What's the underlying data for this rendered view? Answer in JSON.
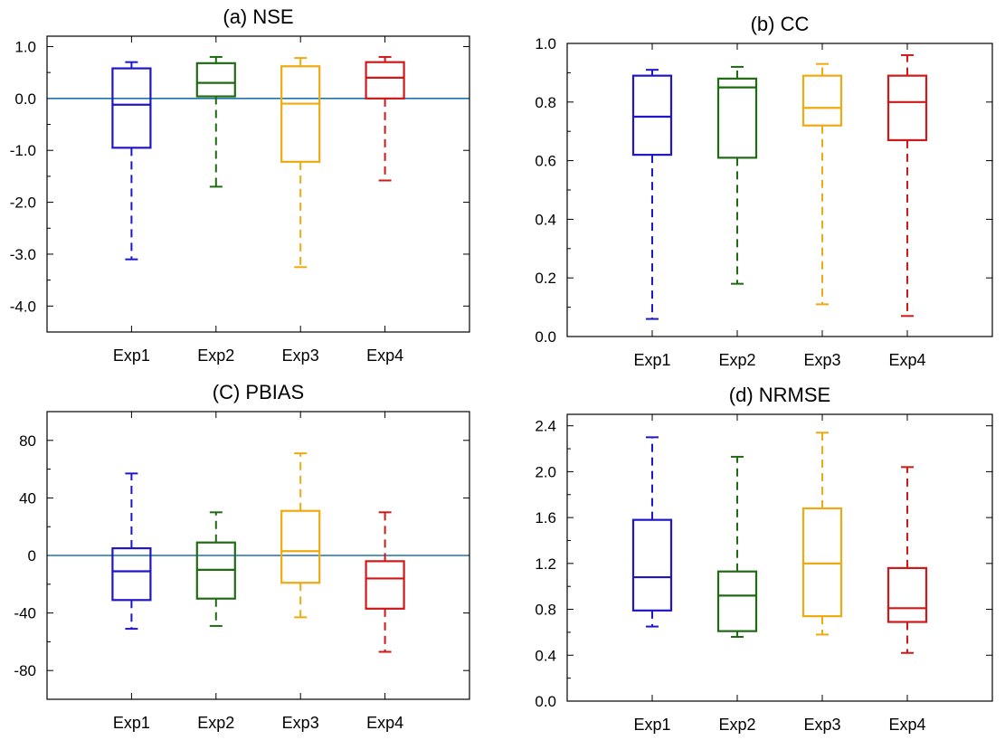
{
  "chart_data": [
    {
      "type": "box",
      "title": "(a) NSE",
      "categories": [
        "Exp1",
        "Exp2",
        "Exp3",
        "Exp4"
      ],
      "ylim": [
        -4.5,
        1.2
      ],
      "yticks": [
        -4.0,
        -3.0,
        -2.0,
        -1.0,
        0.0,
        1.0
      ],
      "ytick_labels": [
        "-4.0",
        "-3.0",
        "-2.0",
        "-1.0",
        "0.0",
        "1.0"
      ],
      "reference_line": 0,
      "boxes": [
        {
          "min": -3.1,
          "q1": -0.95,
          "median": -0.12,
          "q3": 0.58,
          "max": 0.7
        },
        {
          "min": -1.7,
          "q1": 0.04,
          "median": 0.3,
          "q3": 0.68,
          "max": 0.8
        },
        {
          "min": -3.25,
          "q1": -1.22,
          "median": -0.1,
          "q3": 0.62,
          "max": 0.78
        },
        {
          "min": -1.58,
          "q1": 0.0,
          "median": 0.4,
          "q3": 0.7,
          "max": 0.8
        }
      ]
    },
    {
      "type": "box",
      "title": "(b) CC",
      "categories": [
        "Exp1",
        "Exp2",
        "Exp3",
        "Exp4"
      ],
      "ylim": [
        0.0,
        1.0
      ],
      "yticks": [
        0.0,
        0.2,
        0.4,
        0.6,
        0.8,
        1.0
      ],
      "ytick_labels": [
        "0.0",
        "0.2",
        "0.4",
        "0.6",
        "0.8",
        "1.0"
      ],
      "reference_line": null,
      "boxes": [
        {
          "min": 0.06,
          "q1": 0.62,
          "median": 0.75,
          "q3": 0.89,
          "max": 0.91
        },
        {
          "min": 0.18,
          "q1": 0.61,
          "median": 0.85,
          "q3": 0.88,
          "max": 0.92
        },
        {
          "min": 0.11,
          "q1": 0.72,
          "median": 0.78,
          "q3": 0.89,
          "max": 0.93
        },
        {
          "min": 0.07,
          "q1": 0.67,
          "median": 0.8,
          "q3": 0.89,
          "max": 0.96
        }
      ]
    },
    {
      "type": "box",
      "title": "(C) PBIAS",
      "categories": [
        "Exp1",
        "Exp2",
        "Exp3",
        "Exp4"
      ],
      "ylim": [
        -100,
        100
      ],
      "yticks": [
        -80,
        -40,
        0,
        40,
        80
      ],
      "ytick_labels": [
        "-80",
        "-40",
        "0",
        "40",
        "80"
      ],
      "reference_line": 0,
      "boxes": [
        {
          "min": -51,
          "q1": -31,
          "median": -11,
          "q3": 5,
          "max": 57
        },
        {
          "min": -49,
          "q1": -30,
          "median": -10,
          "q3": 9,
          "max": 30
        },
        {
          "min": -43,
          "q1": -19,
          "median": 3,
          "q3": 31,
          "max": 71
        },
        {
          "min": -67,
          "q1": -37,
          "median": -16,
          "q3": -4,
          "max": 30
        }
      ]
    },
    {
      "type": "box",
      "title": "(d) NRMSE",
      "categories": [
        "Exp1",
        "Exp2",
        "Exp3",
        "Exp4"
      ],
      "ylim": [
        0.0,
        2.5
      ],
      "yticks": [
        0.0,
        0.4,
        0.8,
        1.2,
        1.6,
        2.0,
        2.4
      ],
      "ytick_labels": [
        "0.0",
        "0.4",
        "0.8",
        "1.2",
        "1.6",
        "2.0",
        "2.4"
      ],
      "reference_line": null,
      "boxes": [
        {
          "min": 0.65,
          "q1": 0.79,
          "median": 1.08,
          "q3": 1.58,
          "max": 2.3
        },
        {
          "min": 0.56,
          "q1": 0.61,
          "median": 0.92,
          "q3": 1.13,
          "max": 2.13
        },
        {
          "min": 0.58,
          "q1": 0.74,
          "median": 1.2,
          "q3": 1.68,
          "max": 2.34
        },
        {
          "min": 0.42,
          "q1": 0.69,
          "median": 0.81,
          "q3": 1.16,
          "max": 2.04
        }
      ]
    }
  ],
  "colors": {
    "series": [
      "#1f16c8",
      "#1f6b12",
      "#eeaa10",
      "#d01818"
    ],
    "reference_line": "#1e73a8",
    "axis": "#000000"
  }
}
